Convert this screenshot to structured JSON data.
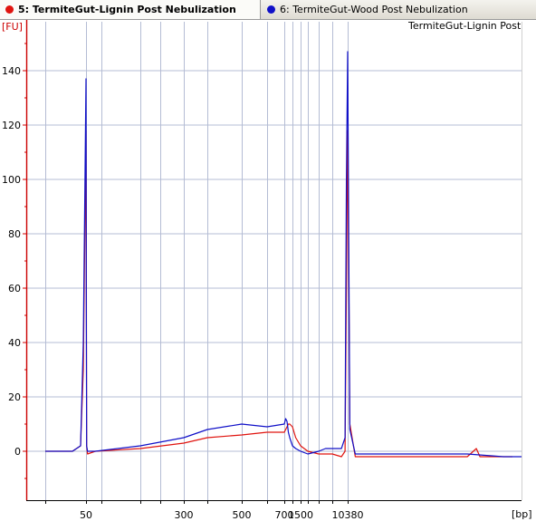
{
  "tabs": [
    {
      "label": "5: TermiteGut-Lignin Post Nebulization",
      "color": "#e0140f",
      "active": true
    },
    {
      "label": "6: TermiteGut-Wood Post Nebulization",
      "color": "#1010c8",
      "active": false
    }
  ],
  "legend_text": "TermiteGut-Lignin Post...",
  "colors": {
    "axis_red": "#cc0000",
    "grid": "#b4bcd4",
    "series_red": "#e0140f",
    "series_blue": "#1010c8"
  },
  "chart_data": {
    "type": "line",
    "ylabel": "[FU]",
    "xlabel": "[bp]",
    "ylim": [
      -18,
      158
    ],
    "y_ticks": [
      0,
      20,
      40,
      60,
      80,
      100,
      120,
      140
    ],
    "x_tick_labels": [
      "50",
      "300",
      "500",
      "700",
      "1500",
      "10380"
    ],
    "ladder_sizes_bp": [
      35,
      50,
      100,
      150,
      200,
      300,
      400,
      500,
      600,
      700,
      1000,
      1500,
      2000,
      3000,
      7000,
      10380
    ],
    "series": [
      {
        "name": "5: TermiteGut-Lignin Post Nebulization",
        "color": "#e0140f",
        "x_bp": [
          35,
          45,
          48,
          49,
          50,
          51,
          52,
          55,
          80,
          150,
          300,
          400,
          500,
          600,
          700,
          750,
          800,
          850,
          900,
          1000,
          1200,
          1500,
          2000,
          3000,
          5000,
          7000,
          9000,
          9800,
          10100,
          10380,
          10500,
          10800,
          11500,
          14000,
          17000,
          17500,
          17700,
          18500,
          19500
        ],
        "values": [
          0,
          0,
          2,
          30,
          118,
          80,
          2,
          -1,
          0,
          1,
          3,
          5,
          6,
          7,
          7,
          8,
          9,
          10,
          10,
          9,
          5,
          2,
          0,
          -1,
          -1,
          -1,
          -2,
          0,
          60,
          118,
          10,
          -2,
          -2,
          -2,
          -2,
          1,
          -2,
          -2,
          -2
        ]
      },
      {
        "name": "6: TermiteGut-Wood Post Nebulization",
        "color": "#1010c8",
        "x_bp": [
          35,
          45,
          48,
          49,
          50,
          51,
          52,
          55,
          80,
          150,
          300,
          400,
          500,
          600,
          700,
          750,
          800,
          850,
          900,
          1000,
          1200,
          1500,
          2000,
          3000,
          5000,
          7000,
          9000,
          9800,
          10100,
          10380,
          10500,
          10800,
          11500,
          14000,
          17000,
          19000,
          20000
        ],
        "values": [
          0,
          0,
          2,
          40,
          137,
          60,
          2,
          0,
          0,
          2,
          5,
          8,
          10,
          9,
          10,
          12,
          11,
          7,
          5,
          2,
          1,
          0,
          -1,
          0,
          1,
          1,
          1,
          5,
          100,
          147,
          8,
          -1,
          -1,
          -1,
          -1,
          -2,
          -2
        ]
      }
    ]
  }
}
